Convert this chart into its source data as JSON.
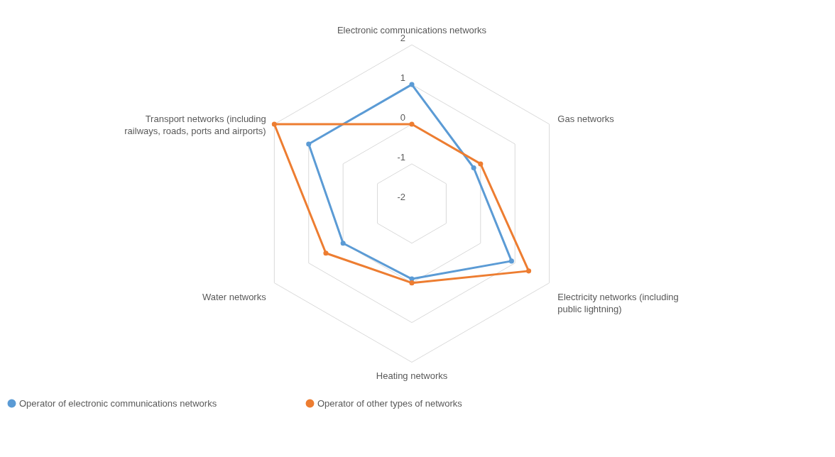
{
  "chart_data": {
    "type": "radar",
    "categories": [
      "Electronic communications networks",
      "Gas networks",
      "Electricity networks (including public lightning)",
      "Heating networks",
      "Water networks",
      "Transport networks (including railways, roads, ports and airports)"
    ],
    "series": [
      {
        "name": "Operator of electronic communications networks",
        "color": "#5b9bd5",
        "values": [
          1,
          -0.2,
          0.9,
          -0.1,
          0,
          1
        ]
      },
      {
        "name": "Operator of other types of networks",
        "color": "#ed7d31",
        "values": [
          0,
          0,
          1.4,
          0,
          0.5,
          2
        ]
      }
    ],
    "ylim": [
      -2,
      2
    ],
    "yticks": [
      -2,
      -1,
      0,
      1,
      2
    ],
    "grid": true,
    "legend": "bottom",
    "marker": "circle",
    "line_style": "solid"
  }
}
